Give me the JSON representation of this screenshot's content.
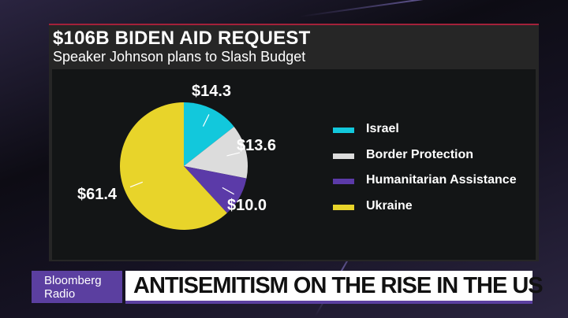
{
  "header": {
    "title": "$106B BIDEN AID REQUEST",
    "subtitle": "Speaker Johnson plans to Slash Budget"
  },
  "chart_data": {
    "type": "pie",
    "title": "$106B BIDEN AID REQUEST",
    "subtitle": "Speaker Johnson plans to Slash Budget",
    "categories": [
      "Israel",
      "Border Protection",
      "Humanitarian Assistance",
      "Ukraine"
    ],
    "values": [
      14.3,
      13.6,
      10.0,
      61.4
    ],
    "data_labels": [
      "$14.3",
      "$13.6",
      "$10.0",
      "$61.4"
    ],
    "colors": [
      "#12c8dc",
      "#dcdcdc",
      "#5b3aa8",
      "#e8d42a"
    ],
    "legend": "right"
  },
  "lower_third": {
    "brand_line1": "Bloomberg",
    "brand_line2": "Radio",
    "headline": "ANTISEMITISM ON THE RISE IN THE US",
    "brand_color": "#5b3fa0"
  }
}
